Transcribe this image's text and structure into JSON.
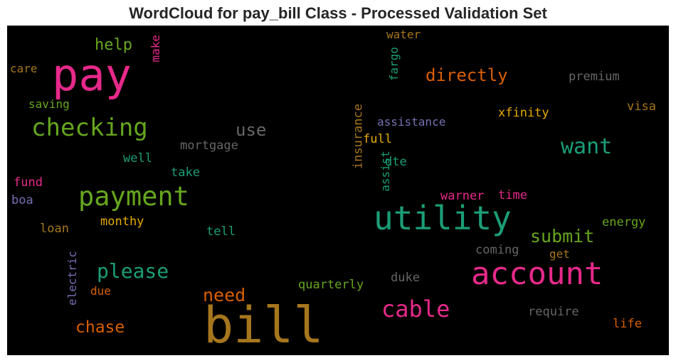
{
  "title": "WordCloud for pay_bill Class - Processed Validation Set",
  "chart_data": {
    "type": "wordcloud",
    "title": "WordCloud for pay_bill Class - Processed Validation Set",
    "background": "#000000",
    "colormap": "Dark2",
    "words": [
      {
        "text": "bill",
        "color": "#a6761d"
      },
      {
        "text": "pay",
        "color": "#e7298a"
      },
      {
        "text": "account",
        "color": "#e7298a"
      },
      {
        "text": "utility",
        "color": "#1b9e77"
      },
      {
        "text": "payment",
        "color": "#66a61e"
      },
      {
        "text": "checking",
        "color": "#66a61e"
      },
      {
        "text": "cable",
        "color": "#e7298a"
      },
      {
        "text": "please",
        "color": "#1b9e77"
      },
      {
        "text": "directly",
        "color": "#d95f02"
      },
      {
        "text": "want",
        "color": "#1b9e77"
      },
      {
        "text": "submit",
        "color": "#66a61e"
      },
      {
        "text": "need",
        "color": "#d95f02"
      },
      {
        "text": "chase",
        "color": "#d95f02"
      },
      {
        "text": "use",
        "color": "#666666"
      },
      {
        "text": "help",
        "color": "#66a61e"
      },
      {
        "text": "insurance",
        "color": "#a6761d"
      },
      {
        "text": "electric",
        "color": "#7570b3"
      },
      {
        "text": "assistance",
        "color": "#7570b3"
      },
      {
        "text": "premium",
        "color": "#666666"
      },
      {
        "text": "mortgage",
        "color": "#666666"
      },
      {
        "text": "quarterly",
        "color": "#66a61e"
      },
      {
        "text": "xfinity",
        "color": "#e6ab02"
      },
      {
        "text": "fargo",
        "color": "#1b9e77"
      },
      {
        "text": "warner",
        "color": "#e7298a"
      },
      {
        "text": "require",
        "color": "#666666"
      },
      {
        "text": "assist",
        "color": "#1b9e77"
      },
      {
        "text": "monthy",
        "color": "#e6ab02"
      },
      {
        "text": "coming",
        "color": "#666666"
      },
      {
        "text": "energy",
        "color": "#66a61e"
      },
      {
        "text": "saving",
        "color": "#66a61e"
      },
      {
        "text": "water",
        "color": "#a6761d"
      },
      {
        "text": "visa",
        "color": "#a6761d"
      },
      {
        "text": "time",
        "color": "#e7298a"
      },
      {
        "text": "full",
        "color": "#e6ab02"
      },
      {
        "text": "dte",
        "color": "#1b9e77"
      },
      {
        "text": "duke",
        "color": "#666666"
      },
      {
        "text": "life",
        "color": "#d95f02"
      },
      {
        "text": "take",
        "color": "#1b9e77"
      },
      {
        "text": "well",
        "color": "#1b9e77"
      },
      {
        "text": "tell",
        "color": "#1b9e77"
      },
      {
        "text": "get",
        "color": "#a6761d"
      },
      {
        "text": "make",
        "color": "#e7298a"
      },
      {
        "text": "care",
        "color": "#a6761d"
      },
      {
        "text": "fund",
        "color": "#e7298a"
      },
      {
        "text": "boa",
        "color": "#7570b3"
      },
      {
        "text": "loan",
        "color": "#a6761d"
      },
      {
        "text": "due",
        "color": "#d95f02"
      }
    ]
  }
}
